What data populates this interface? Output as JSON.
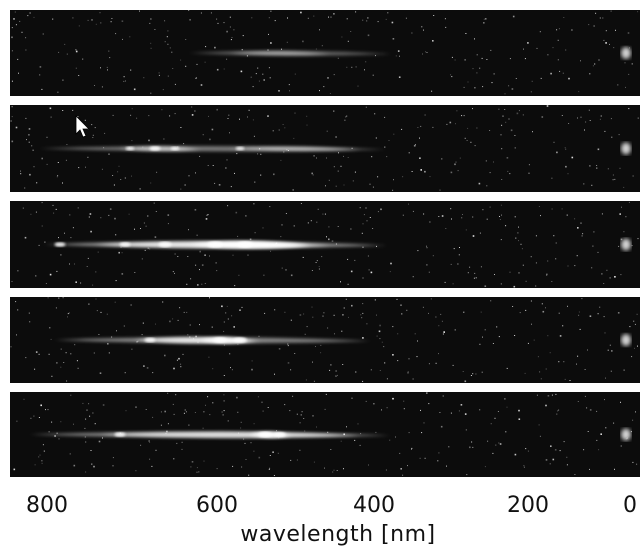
{
  "figure": {
    "panel_count": 5,
    "panel_color": "#0c0c0c",
    "streak_color": "#ffffff",
    "cursor": "mouse-pointer-icon"
  },
  "axis": {
    "title": "wavelength [nm]",
    "ticks": [
      "800",
      "600",
      "400",
      "200",
      "0"
    ]
  }
}
